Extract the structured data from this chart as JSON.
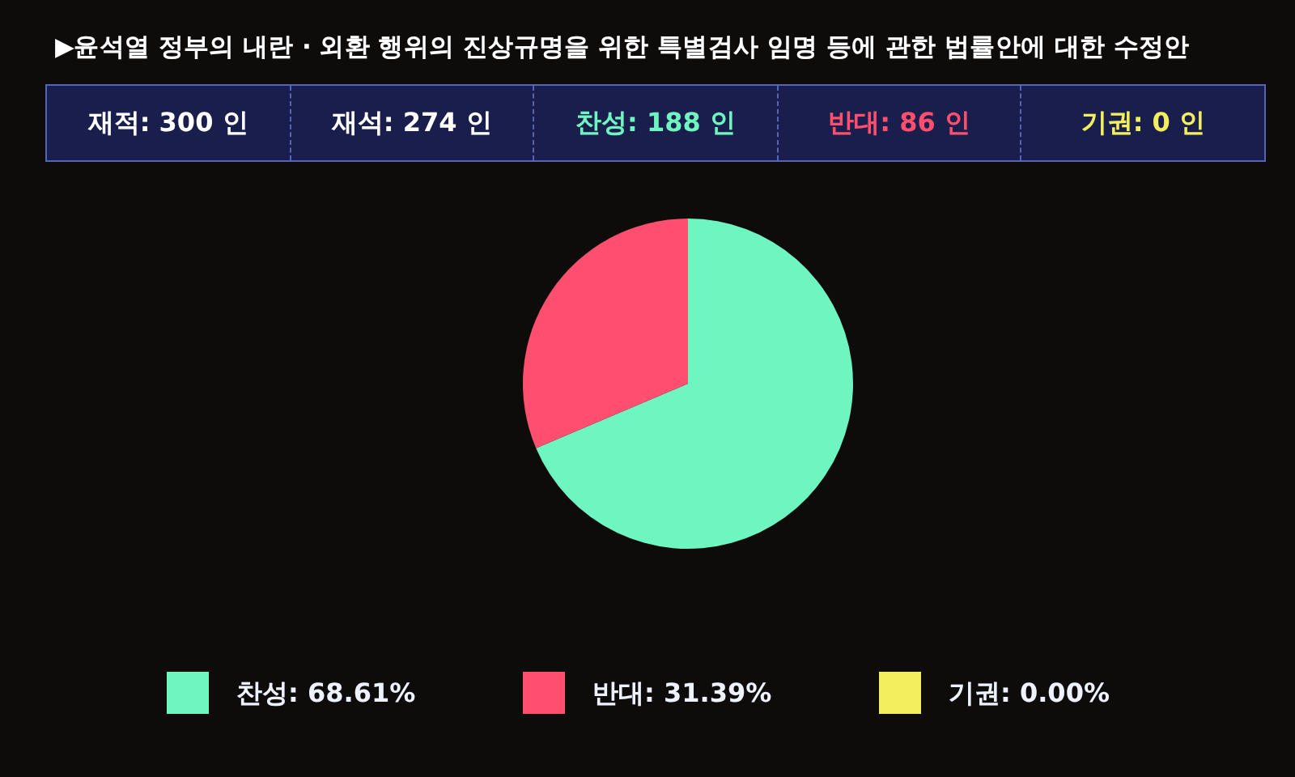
{
  "chart_data": {
    "type": "pie",
    "title": "▶윤석열 정부의 내란 · 외환 행위의 진상규명을 위한 특별검사 임명 등에 관한 법률안에 대한 수정안",
    "annotations": [
      "재적: 300 인",
      "재석: 274 인",
      "찬성: 188 인",
      "반대: 86 인",
      "기권: 0 인"
    ],
    "categories": [
      "찬성",
      "반대",
      "기권"
    ],
    "values": [
      68.61,
      31.39,
      0.0
    ],
    "value_labels": [
      "68.61%",
      "31.39%",
      "0.00%"
    ],
    "colors": [
      "#6ff5c0",
      "#ff4f6e",
      "#f2ef5e"
    ],
    "legend": "bottom"
  }
}
